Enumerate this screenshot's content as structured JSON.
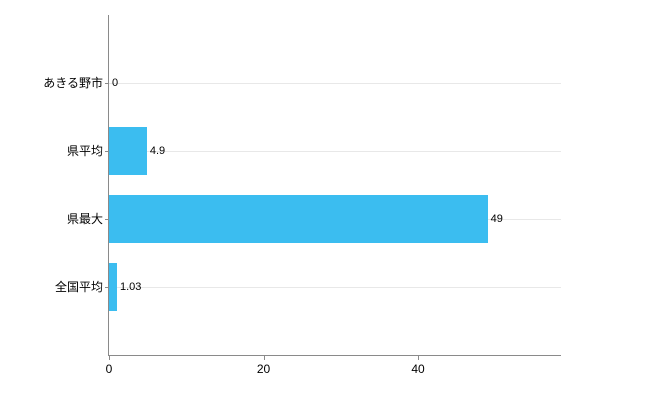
{
  "chart_data": {
    "type": "bar",
    "orientation": "horizontal",
    "title": "",
    "xlabel": "",
    "ylabel": "",
    "categories": [
      "あきる野市",
      "県平均",
      "県最大",
      "全国平均"
    ],
    "values": [
      0,
      4.9,
      49,
      1.03
    ],
    "value_labels": [
      "0",
      "4.9",
      "49",
      "1.03"
    ],
    "xlim": [
      0,
      58.5
    ],
    "x_ticks": [
      0,
      20,
      40
    ],
    "x_tick_labels": [
      "0",
      "20",
      "40"
    ],
    "grid": "horizontal-light",
    "legend": "none",
    "bar_color": "#3bbdf0",
    "axis_color": "#8a8a8a",
    "gridline_color": "#e8e8e8",
    "text_color": "#000000"
  }
}
